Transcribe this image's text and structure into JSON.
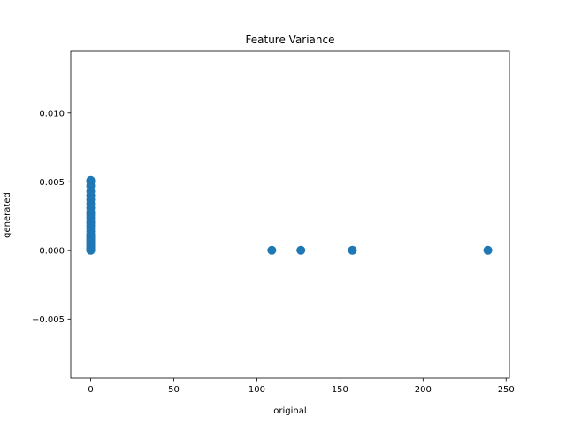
{
  "chart_data": {
    "type": "scatter",
    "title": "Feature Variance",
    "xlabel": "original",
    "ylabel": "generated",
    "xlim": [
      -12,
      252
    ],
    "ylim": [
      -0.0093,
      0.0145
    ],
    "xticks": [
      0,
      50,
      100,
      150,
      200,
      250
    ],
    "yticks": [
      -0.005,
      0.0,
      0.005,
      0.01
    ],
    "xtick_labels": [
      "0",
      "50",
      "100",
      "150",
      "200",
      "250"
    ],
    "ytick_labels": [
      "−0.005",
      "0.000",
      "0.005",
      "0.010"
    ],
    "grid": false,
    "color": "#1f77b4",
    "series": [
      {
        "x": [
          0,
          0,
          0,
          0,
          0,
          0,
          0,
          0,
          0,
          0,
          0,
          0,
          0,
          0,
          0,
          0,
          0,
          0,
          0,
          0,
          0,
          0,
          0,
          0,
          0,
          0,
          0,
          0,
          0,
          0,
          0,
          0,
          109,
          126.5,
          157.5,
          239
        ],
        "y": [
          0.0051,
          0.005,
          0.0047,
          0.0043,
          0.004,
          0.0037,
          0.0034,
          0.0031,
          0.0028,
          0.0026,
          0.0024,
          0.0022,
          0.002,
          0.0018,
          0.0016,
          0.0014,
          0.0012,
          0.0011,
          0.001,
          0.0009,
          0.0008,
          0.0007,
          0.0006,
          0.0005,
          0.0004,
          0.0003,
          0.0002,
          0.00015,
          0.0001,
          5e-05,
          2e-05,
          0.0,
          0.0,
          0.0,
          0.0,
          0.0
        ]
      }
    ]
  }
}
